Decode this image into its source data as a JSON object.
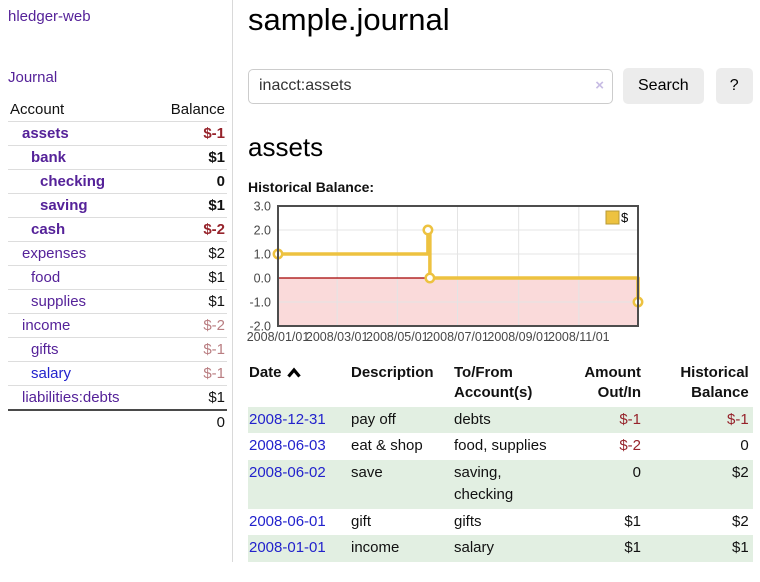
{
  "app": {
    "brand": "hledger-web"
  },
  "sidebar": {
    "journal_link": "Journal",
    "accounts_header": {
      "account": "Account",
      "balance": "Balance"
    },
    "accounts": [
      {
        "name": "assets",
        "depth": 1,
        "bold": true,
        "balance": "$-1",
        "balance_class": "neg"
      },
      {
        "name": "bank",
        "depth": 2,
        "bold": true,
        "balance": "$1",
        "balance_class": ""
      },
      {
        "name": "checking",
        "depth": 3,
        "bold": true,
        "balance": "0",
        "balance_class": ""
      },
      {
        "name": "saving",
        "depth": 3,
        "bold": true,
        "balance": "$1",
        "balance_class": ""
      },
      {
        "name": "cash",
        "depth": 2,
        "bold": true,
        "balance": "$-2",
        "balance_class": "neg"
      },
      {
        "name": "expenses",
        "depth": 1,
        "bold": false,
        "balance": "$2",
        "balance_class": ""
      },
      {
        "name": "food",
        "depth": 2,
        "bold": false,
        "balance": "$1",
        "balance_class": ""
      },
      {
        "name": "supplies",
        "depth": 2,
        "bold": false,
        "balance": "$1",
        "balance_class": ""
      },
      {
        "name": "income",
        "depth": 1,
        "bold": false,
        "balance": "$-2",
        "balance_class": "fade"
      },
      {
        "name": "gifts",
        "depth": 2,
        "bold": false,
        "balance": "$-1",
        "balance_class": "fade"
      },
      {
        "name": "salary",
        "depth": 2,
        "bold": false,
        "unvisited": true,
        "balance": "$-1",
        "balance_class": "fade"
      },
      {
        "name": "liabilities:debts",
        "depth": 1,
        "bold": false,
        "balance": "$1",
        "balance_class": ""
      }
    ],
    "total": "0"
  },
  "header": {
    "title": "sample.journal"
  },
  "search": {
    "value": "inacct:assets",
    "clear_icon": "×",
    "button_label": "Search",
    "help_label": "?"
  },
  "account_page": {
    "title": "assets",
    "chart_label": "Historical Balance:"
  },
  "chart_data": {
    "type": "line",
    "title": "Historical Balance:",
    "step": true,
    "xlim": [
      "2008-01-01",
      "2008-12-31"
    ],
    "ylim": [
      -2,
      3
    ],
    "x_ticks": [
      "2008/01/01",
      "2008/03/01",
      "2008/05/01",
      "2008/07/01",
      "2008/09/01",
      "2008/11/01"
    ],
    "y_ticks": [
      "3.0",
      "2.0",
      "1.0",
      "0.0",
      "-1.0",
      "-2.0"
    ],
    "series": [
      {
        "name": "$",
        "color": "#edc240",
        "points": [
          [
            "2008-01-01",
            1
          ],
          [
            "2008-06-01",
            2
          ],
          [
            "2008-06-03",
            0
          ],
          [
            "2008-12-31",
            -1
          ]
        ]
      }
    ],
    "legend": {
      "label": "$",
      "position": "top-right"
    },
    "negative_region_color": "#fadada",
    "zero_line_color": "#a40000",
    "grid": true
  },
  "register": {
    "headers": {
      "date": "Date",
      "description": "Description",
      "accounts": "To/From\nAccount(s)",
      "amount": "Amount\nOut/In",
      "balance": "Historical\nBalance"
    },
    "rows": [
      {
        "date": "2008-12-31",
        "description": "pay off",
        "accounts": "debts",
        "amount": "$-1",
        "balance": "$-1"
      },
      {
        "date": "2008-06-03",
        "description": "eat & shop",
        "accounts": "food, supplies",
        "amount": "$-2",
        "balance": "0"
      },
      {
        "date": "2008-06-02",
        "description": "save",
        "accounts": "saving,\nchecking",
        "amount": "0",
        "balance": "$2"
      },
      {
        "date": "2008-06-01",
        "description": "gift",
        "accounts": "gifts",
        "amount": "$1",
        "balance": "$2"
      },
      {
        "date": "2008-01-01",
        "description": "income",
        "accounts": "salary",
        "amount": "$1",
        "balance": "$1"
      }
    ]
  }
}
